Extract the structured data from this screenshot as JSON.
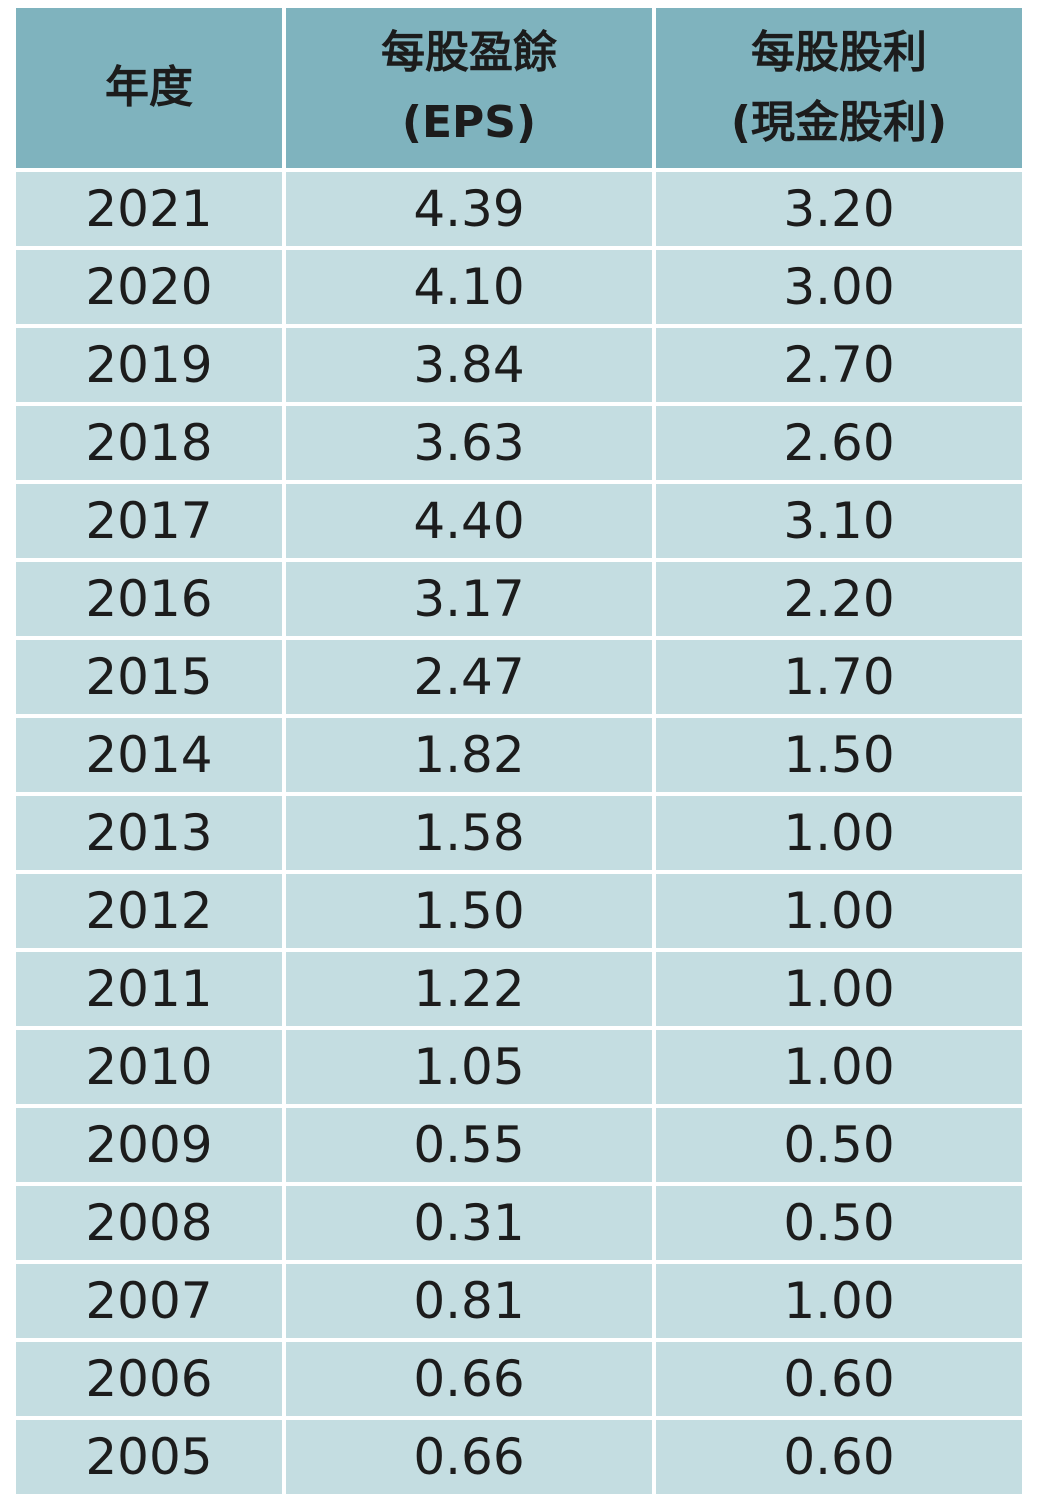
{
  "table": {
    "header": [
      [
        "年度"
      ],
      [
        "每股盈餘",
        "(EPS)"
      ],
      [
        "每股股利",
        "(現金股利)"
      ]
    ],
    "rows": [
      [
        "2021",
        "4.39",
        "3.20"
      ],
      [
        "2020",
        "4.10",
        "3.00"
      ],
      [
        "2019",
        "3.84",
        "2.70"
      ],
      [
        "2018",
        "3.63",
        "2.60"
      ],
      [
        "2017",
        "4.40",
        "3.10"
      ],
      [
        "2016",
        "3.17",
        "2.20"
      ],
      [
        "2015",
        "2.47",
        "1.70"
      ],
      [
        "2014",
        "1.82",
        "1.50"
      ],
      [
        "2013",
        "1.58",
        "1.00"
      ],
      [
        "2012",
        "1.50",
        "1.00"
      ],
      [
        "2011",
        "1.22",
        "1.00"
      ],
      [
        "2010",
        "1.05",
        "1.00"
      ],
      [
        "2009",
        "0.55",
        "0.50"
      ],
      [
        "2008",
        "0.31",
        "0.50"
      ],
      [
        "2007",
        "0.81",
        "1.00"
      ],
      [
        "2006",
        "0.66",
        "0.60"
      ],
      [
        "2005",
        "0.66",
        "0.60"
      ]
    ]
  }
}
